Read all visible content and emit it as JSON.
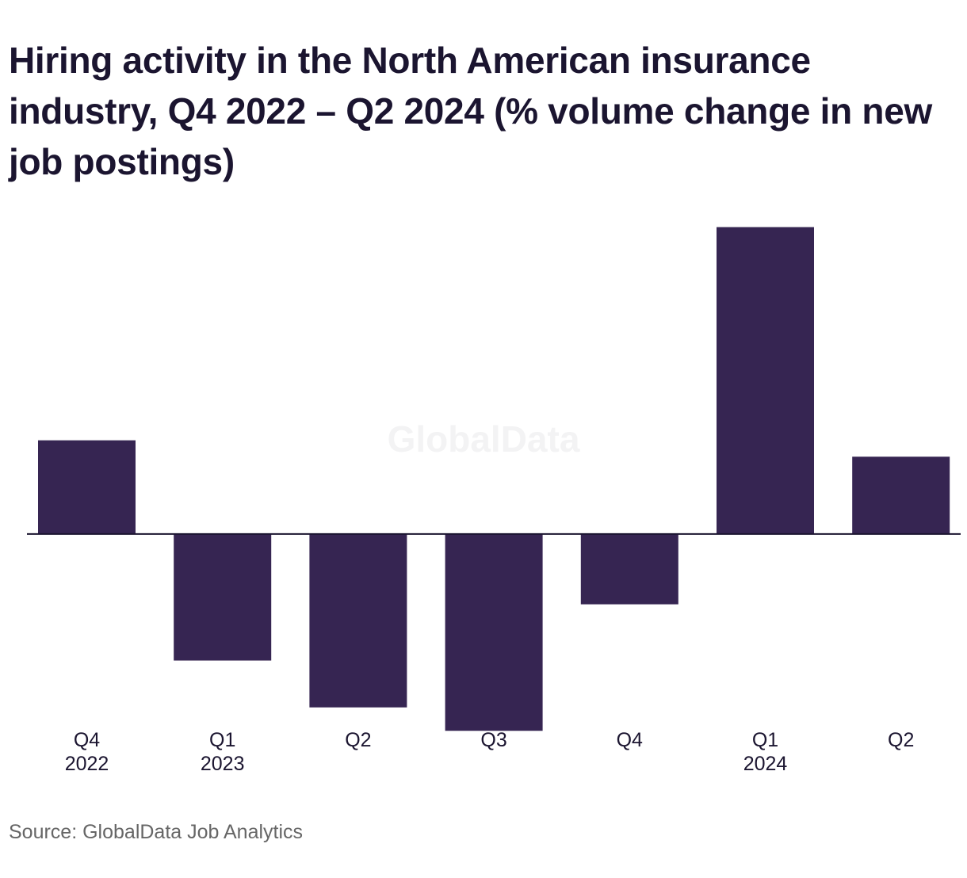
{
  "title": "Hiring activity in the North American insurance industry, Q4 2022 – Q2 2024 (% volume change in new job postings)",
  "source": "Source: GlobalData Job Analytics",
  "watermark": "GlobalData",
  "colors": {
    "bar": "#362552",
    "axis": "#1b1530",
    "watermark": "#f3f3f4"
  },
  "chart_data": {
    "type": "bar",
    "title": "Hiring activity in the North American insurance industry, Q4 2022 – Q2 2024 (% volume change in new job postings)",
    "xlabel": "",
    "ylabel": "",
    "categories": [
      [
        "Q4",
        "2022"
      ],
      [
        "Q1",
        "2023"
      ],
      [
        "Q2"
      ],
      [
        "Q3"
      ],
      [
        "Q4"
      ],
      [
        "Q1",
        "2024"
      ],
      [
        "Q2"
      ]
    ],
    "values": [
      4.0,
      -5.4,
      -7.4,
      -8.4,
      -3.0,
      13.1,
      3.3
    ],
    "ylim": [
      -9,
      14
    ],
    "grid": false,
    "legend": "none",
    "data_labels": false
  }
}
